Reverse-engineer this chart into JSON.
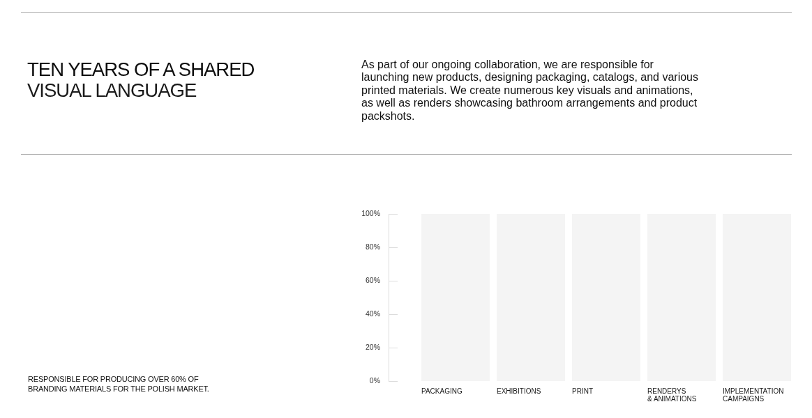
{
  "chart_data": {
    "type": "bar",
    "title": "TEN YEARS OF A SHARED",
    "subtitle": "VISUAL LANGUAGE",
    "annotations": [
      "As part of our ongoing collaboration, we are responsible for launching new products, designing packaging, catalogs, and various printed materials. We create numerous key visuals and animations, as well as renders showcasing bathroom arrangements and product packshots.",
      "RESPONSIBLE FOR PRODUCING OVER 60% OF BRANDING MATERIALS FOR THE POLISH MARKET."
    ],
    "categories": [
      "PACKAGING",
      "EXHIBITIONS",
      "PRINT",
      "RENDERYS\n& ANIMATIONS",
      "IMPLEMENTATION\nCAMPAIGNS"
    ],
    "values": [
      100,
      100,
      100,
      100,
      100
    ],
    "color": "#f4f4f4",
    "ylim": [
      0,
      100
    ],
    "yticks": [
      {
        "value": 0,
        "label": "0%"
      },
      {
        "value": 20,
        "label": "20%"
      },
      {
        "value": 40,
        "label": "40%"
      },
      {
        "value": 60,
        "label": "60%"
      },
      {
        "value": 80,
        "label": "80%"
      },
      {
        "value": 100,
        "label": "100%"
      }
    ],
    "grid": false,
    "legend": false
  }
}
